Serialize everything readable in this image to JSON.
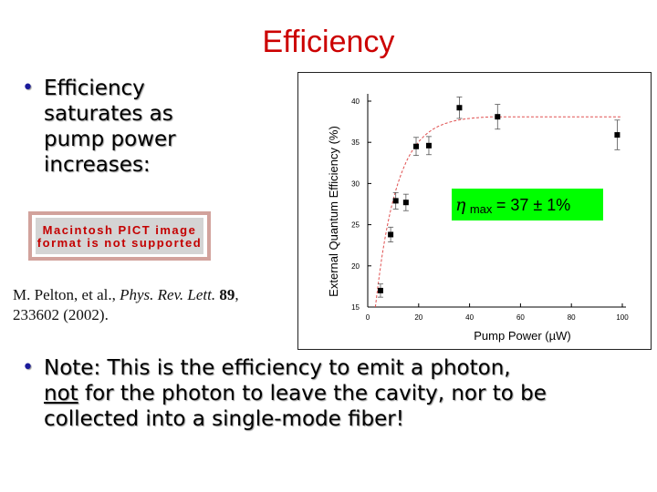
{
  "slide": {
    "title": "Efficiency",
    "bullet1": "Efficiency saturates as pump power increases:",
    "pict_placeholder": "Macintosh PICT image format is not supported",
    "citation": {
      "authors": "M. Pelton, et al.,",
      "journal": "Phys. Rev. Lett.",
      "volume": "89",
      "rest": ", 233602 (2002)."
    },
    "bullet2_pre": "Note: This is the efficiency to emit a photon,",
    "bullet2_not": "not",
    "bullet2_post": " for the photon to leave the cavity, nor to be collected into a single-mode fiber!"
  },
  "colors": {
    "title": "#cc0000",
    "bullet": "#1a1a9a",
    "fit_line": "#e05050",
    "annotation_bg": "#00ff00"
  },
  "chart_data": {
    "type": "scatter",
    "xlabel": "Pump Power (µW)",
    "ylabel": "External Quantum Efficiency (%)",
    "xlim": [
      0,
      100
    ],
    "ylim": [
      15,
      40
    ],
    "xticks": [
      0,
      20,
      40,
      60,
      80,
      100
    ],
    "yticks": [
      15,
      20,
      25,
      30,
      35,
      40
    ],
    "points": [
      {
        "x": 5,
        "y": 17.0,
        "err": 0.8
      },
      {
        "x": 9,
        "y": 23.8,
        "err": 0.9
      },
      {
        "x": 11,
        "y": 27.9,
        "err": 1.0
      },
      {
        "x": 15,
        "y": 27.7,
        "err": 1.0
      },
      {
        "x": 19,
        "y": 34.5,
        "err": 1.1
      },
      {
        "x": 24,
        "y": 34.6,
        "err": 1.1
      },
      {
        "x": 36,
        "y": 39.2,
        "err": 1.3
      },
      {
        "x": 51,
        "y": 38.1,
        "err": 1.5
      },
      {
        "x": 98,
        "y": 35.9,
        "err": 1.8
      }
    ],
    "fit": {
      "type": "saturation",
      "asymptote": 37.5
    },
    "annotation": "η",
    "annotation_sub": "max",
    "annotation_rest": " = 37 ± 1%"
  }
}
